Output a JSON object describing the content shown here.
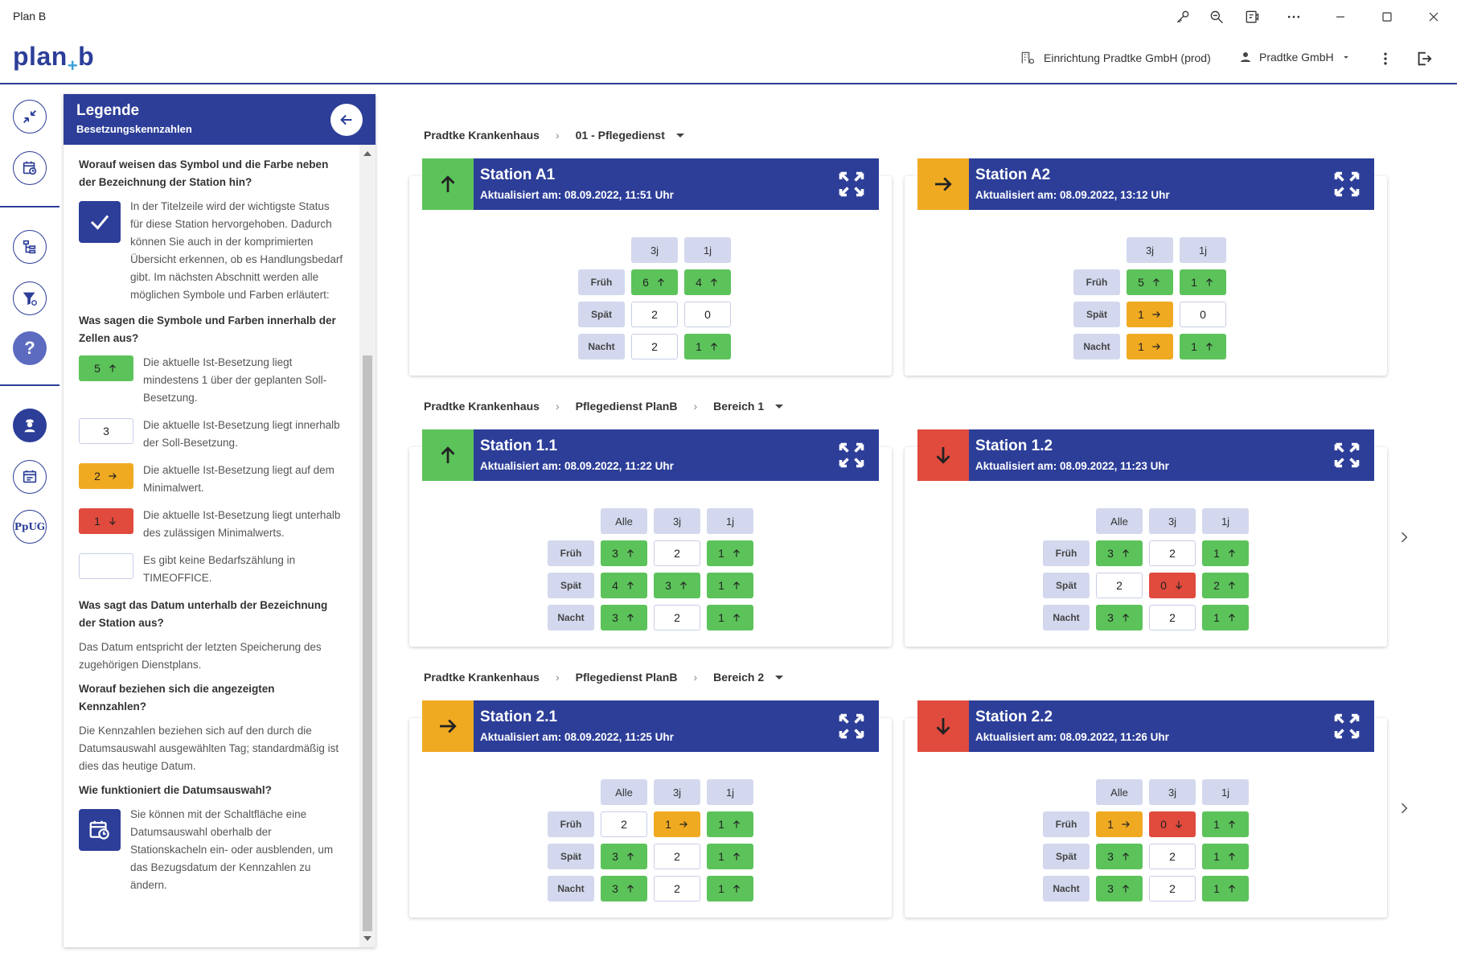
{
  "window": {
    "title": "Plan B"
  },
  "header": {
    "logo_left": "plan",
    "logo_plus": "+",
    "logo_right": "b",
    "org": "Einrichtung Pradtke GmbH (prod)",
    "user": "Pradtke GmbH"
  },
  "legend": {
    "title": "Legende",
    "subtitle": "Besetzungskennzahlen",
    "q1": "Worauf weisen das Symbol und die Farbe neben der Bezeichnung der Station hin?",
    "a1": "In der Titelzeile wird der wichtigste Status für diese Station hervorgehoben. Dadurch können Sie auch in der komprimierten Übersicht erkennen, ob es Handlungsbedarf gibt. Im nächsten Abschnitt werden alle möglichen Symbole und Farben erläutert:",
    "q2": "Was sagen die Symbole und Farben innerhalb der Zellen aus?",
    "items": [
      {
        "value": "5",
        "color": "green",
        "arrow": "up",
        "text": "Die aktuelle Ist-Besetzung liegt mindestens 1 über der geplanten Soll-Besetzung."
      },
      {
        "value": "3",
        "color": "white",
        "arrow": "",
        "text": "Die aktuelle Ist-Besetzung liegt innerhalb der Soll-Besetzung."
      },
      {
        "value": "2",
        "color": "orange",
        "arrow": "right",
        "text": "Die aktuelle Ist-Besetzung liegt auf dem Minimalwert."
      },
      {
        "value": "1",
        "color": "red",
        "arrow": "down",
        "text": "Die aktuelle Ist-Besetzung liegt unterhalb des zulässigen Minimalwerts."
      },
      {
        "value": "",
        "color": "white",
        "arrow": "",
        "text": "Es gibt keine Bedarfszählung in TIMEOFFICE."
      }
    ],
    "q3": "Was sagt das Datum unterhalb der Bezeichnung der Station aus?",
    "a3": "Das Datum entspricht der letzten Speicherung des zugehörigen Dienstplans.",
    "q4": "Worauf beziehen sich die angezeigten Kennzahlen?",
    "a4": "Die Kennzahlen beziehen sich auf den durch die Datumsauswahl ausgewählten Tag; standardmäßig ist dies das heutige Datum.",
    "q5": "Wie funktioniert die Datumsauswahl?",
    "a5": "Sie können mit der Schaltfläche eine Datumsauswahl oberhalb der Stationskacheln ein- oder ausblenden, um das Bezugsdatum der Kennzahlen zu ändern."
  },
  "groups": [
    {
      "crumbs": [
        "Pradtke Krankenhaus",
        "01 - Pflegedienst"
      ],
      "stations": [
        {
          "name": "Station A1",
          "updated": "Aktualisiert am: 08.09.2022, 11:51 Uhr",
          "status": "green",
          "columns": [
            "3j",
            "1j"
          ],
          "rows": [
            {
              "label": "Früh",
              "cells": [
                {
                  "v": "6",
                  "c": "green",
                  "a": "up"
                },
                {
                  "v": "4",
                  "c": "green",
                  "a": "up"
                }
              ]
            },
            {
              "label": "Spät",
              "cells": [
                {
                  "v": "2",
                  "c": "white",
                  "a": ""
                },
                {
                  "v": "0",
                  "c": "white",
                  "a": ""
                }
              ]
            },
            {
              "label": "Nacht",
              "cells": [
                {
                  "v": "2",
                  "c": "white",
                  "a": ""
                },
                {
                  "v": "1",
                  "c": "green",
                  "a": "up"
                }
              ]
            }
          ]
        },
        {
          "name": "Station A2",
          "updated": "Aktualisiert am: 08.09.2022, 13:12 Uhr",
          "status": "orange",
          "columns": [
            "3j",
            "1j"
          ],
          "rows": [
            {
              "label": "Früh",
              "cells": [
                {
                  "v": "5",
                  "c": "green",
                  "a": "up"
                },
                {
                  "v": "1",
                  "c": "green",
                  "a": "up"
                }
              ]
            },
            {
              "label": "Spät",
              "cells": [
                {
                  "v": "1",
                  "c": "orange",
                  "a": "right"
                },
                {
                  "v": "0",
                  "c": "white",
                  "a": ""
                }
              ]
            },
            {
              "label": "Nacht",
              "cells": [
                {
                  "v": "1",
                  "c": "orange",
                  "a": "right"
                },
                {
                  "v": "1",
                  "c": "green",
                  "a": "up"
                }
              ]
            }
          ]
        }
      ]
    },
    {
      "crumbs": [
        "Pradtke Krankenhaus",
        "Pflegedienst PlanB",
        "Bereich 1"
      ],
      "stations": [
        {
          "name": "Station 1.1",
          "updated": "Aktualisiert am: 08.09.2022, 11:22 Uhr",
          "status": "green",
          "columns": [
            "Alle",
            "3j",
            "1j"
          ],
          "rows": [
            {
              "label": "Früh",
              "cells": [
                {
                  "v": "3",
                  "c": "green",
                  "a": "up"
                },
                {
                  "v": "2",
                  "c": "white",
                  "a": ""
                },
                {
                  "v": "1",
                  "c": "green",
                  "a": "up"
                }
              ]
            },
            {
              "label": "Spät",
              "cells": [
                {
                  "v": "4",
                  "c": "green",
                  "a": "up"
                },
                {
                  "v": "3",
                  "c": "green",
                  "a": "up"
                },
                {
                  "v": "1",
                  "c": "green",
                  "a": "up"
                }
              ]
            },
            {
              "label": "Nacht",
              "cells": [
                {
                  "v": "3",
                  "c": "green",
                  "a": "up"
                },
                {
                  "v": "2",
                  "c": "white",
                  "a": ""
                },
                {
                  "v": "1",
                  "c": "green",
                  "a": "up"
                }
              ]
            }
          ]
        },
        {
          "name": "Station 1.2",
          "updated": "Aktualisiert am: 08.09.2022, 11:23 Uhr",
          "status": "red",
          "columns": [
            "Alle",
            "3j",
            "1j"
          ],
          "rows": [
            {
              "label": "Früh",
              "cells": [
                {
                  "v": "3",
                  "c": "green",
                  "a": "up"
                },
                {
                  "v": "2",
                  "c": "white",
                  "a": ""
                },
                {
                  "v": "1",
                  "c": "green",
                  "a": "up"
                }
              ]
            },
            {
              "label": "Spät",
              "cells": [
                {
                  "v": "2",
                  "c": "white",
                  "a": ""
                },
                {
                  "v": "0",
                  "c": "red",
                  "a": "down"
                },
                {
                  "v": "2",
                  "c": "green",
                  "a": "up"
                }
              ]
            },
            {
              "label": "Nacht",
              "cells": [
                {
                  "v": "3",
                  "c": "green",
                  "a": "up"
                },
                {
                  "v": "2",
                  "c": "white",
                  "a": ""
                },
                {
                  "v": "1",
                  "c": "green",
                  "a": "up"
                }
              ]
            }
          ]
        }
      ]
    },
    {
      "crumbs": [
        "Pradtke Krankenhaus",
        "Pflegedienst PlanB",
        "Bereich 2"
      ],
      "stations": [
        {
          "name": "Station 2.1",
          "updated": "Aktualisiert am: 08.09.2022, 11:25 Uhr",
          "status": "orange",
          "columns": [
            "Alle",
            "3j",
            "1j"
          ],
          "rows": [
            {
              "label": "Früh",
              "cells": [
                {
                  "v": "2",
                  "c": "white",
                  "a": ""
                },
                {
                  "v": "1",
                  "c": "orange",
                  "a": "right"
                },
                {
                  "v": "1",
                  "c": "green",
                  "a": "up"
                }
              ]
            },
            {
              "label": "Spät",
              "cells": [
                {
                  "v": "3",
                  "c": "green",
                  "a": "up"
                },
                {
                  "v": "2",
                  "c": "white",
                  "a": ""
                },
                {
                  "v": "1",
                  "c": "green",
                  "a": "up"
                }
              ]
            },
            {
              "label": "Nacht",
              "cells": [
                {
                  "v": "3",
                  "c": "green",
                  "a": "up"
                },
                {
                  "v": "2",
                  "c": "white",
                  "a": ""
                },
                {
                  "v": "1",
                  "c": "green",
                  "a": "up"
                }
              ]
            }
          ]
        },
        {
          "name": "Station 2.2",
          "updated": "Aktualisiert am: 08.09.2022, 11:26 Uhr",
          "status": "red",
          "columns": [
            "Alle",
            "3j",
            "1j"
          ],
          "rows": [
            {
              "label": "Früh",
              "cells": [
                {
                  "v": "1",
                  "c": "orange",
                  "a": "right"
                },
                {
                  "v": "0",
                  "c": "red",
                  "a": "down"
                },
                {
                  "v": "1",
                  "c": "green",
                  "a": "up"
                }
              ]
            },
            {
              "label": "Spät",
              "cells": [
                {
                  "v": "3",
                  "c": "green",
                  "a": "up"
                },
                {
                  "v": "2",
                  "c": "white",
                  "a": ""
                },
                {
                  "v": "1",
                  "c": "green",
                  "a": "up"
                }
              ]
            },
            {
              "label": "Nacht",
              "cells": [
                {
                  "v": "3",
                  "c": "green",
                  "a": "up"
                },
                {
                  "v": "2",
                  "c": "white",
                  "a": ""
                },
                {
                  "v": "1",
                  "c": "green",
                  "a": "up"
                }
              ]
            }
          ]
        }
      ]
    }
  ],
  "colors": {
    "primary": "#2c3e98",
    "green": "#5cc35a",
    "orange": "#f0aa22",
    "red": "#e04b3e",
    "label_bg": "#d3d8ee"
  }
}
